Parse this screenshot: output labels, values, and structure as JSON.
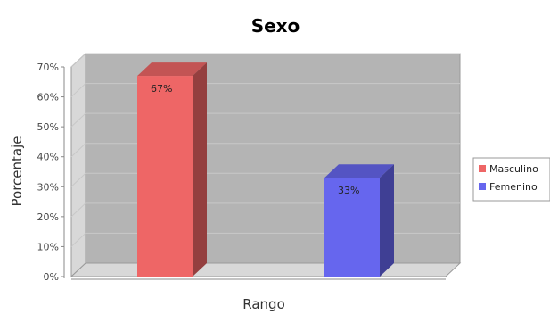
{
  "chart_data": {
    "type": "bar",
    "title": "Sexo",
    "xlabel": "Rango",
    "ylabel": "Porcentaje",
    "ylim": [
      0,
      70
    ],
    "y_ticks": [
      "0%",
      "10%",
      "20%",
      "30%",
      "40%",
      "50%",
      "60%",
      "70%"
    ],
    "y_tick_values": [
      0,
      10,
      20,
      30,
      40,
      50,
      60,
      70
    ],
    "grid": true,
    "legend_position": "right",
    "series": [
      {
        "name": "Masculino",
        "value": 67,
        "label": "67%",
        "color": "#ee6666"
      },
      {
        "name": "Femenino",
        "value": 33,
        "label": "33%",
        "color": "#6666ee"
      }
    ]
  }
}
